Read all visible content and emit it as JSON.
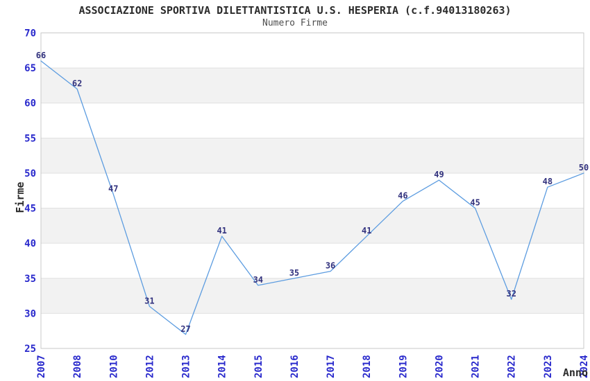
{
  "chart_data": {
    "type": "line",
    "title": "ASSOCIAZIONE SPORTIVA DILETTANTISTICA U.S. HESPERIA (c.f.94013180263)",
    "subtitle": "Numero Firme",
    "xlabel": "Anno",
    "ylabel": "Firme",
    "categories": [
      "2007",
      "2008",
      "2010",
      "2012",
      "2013",
      "2014",
      "2015",
      "2016",
      "2017",
      "2018",
      "2019",
      "2020",
      "2021",
      "2022",
      "2023",
      "2024"
    ],
    "values": [
      66,
      62,
      47,
      31,
      27,
      41,
      34,
      35,
      36,
      41,
      46,
      49,
      45,
      32,
      48,
      50
    ],
    "ylim": [
      25,
      70
    ],
    "ytick_step": 5,
    "yticks": [
      25,
      30,
      35,
      40,
      45,
      50,
      55,
      60,
      65,
      70
    ],
    "grid": "horizontal-alternating-bands",
    "legend": "none",
    "data_labels_visible": true,
    "colors": {
      "line": "#5c9ce0",
      "tick_label": "#2929cc",
      "data_label": "#32327e",
      "title": "#2b2b2b",
      "subtitle": "#4d4d4d",
      "axis_title": "#2b2b2b",
      "band_fill": "#f2f2f2",
      "band_alt_fill": "#ffffff",
      "gridline": "#e0e0e0",
      "plot_border": "#c9c9c9",
      "background": "#ffffff"
    }
  }
}
